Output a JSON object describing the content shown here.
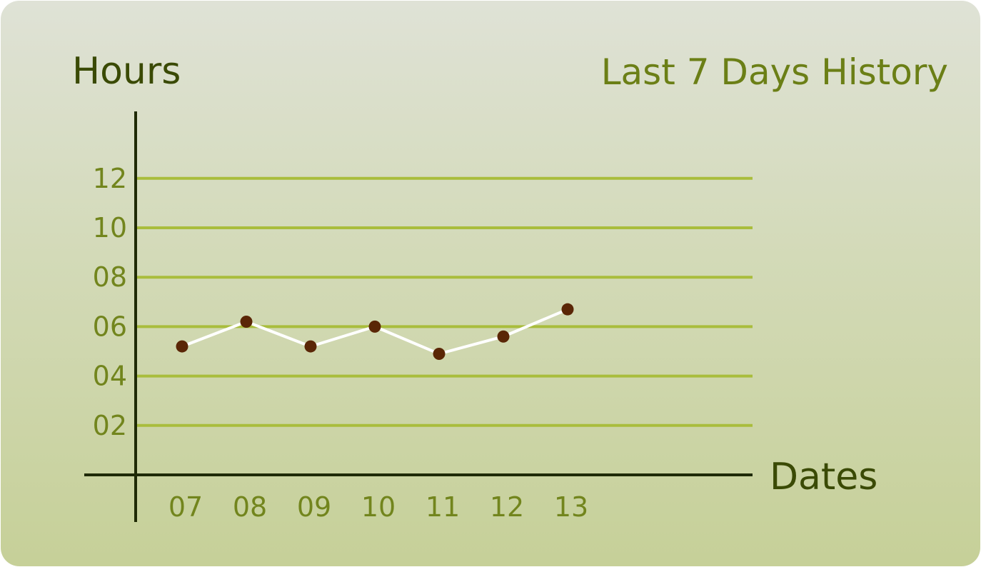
{
  "chart_data": {
    "type": "line",
    "title": "Last 7 Days History",
    "xlabel": "Dates",
    "ylabel": "Hours",
    "categories": [
      "07",
      "08",
      "09",
      "10",
      "11",
      "12",
      "13"
    ],
    "values": [
      5.2,
      6.2,
      5.2,
      6.0,
      4.9,
      5.6,
      6.7
    ],
    "y_ticks": [
      {
        "label": "02",
        "value": 2
      },
      {
        "label": "04",
        "value": 4
      },
      {
        "label": "06",
        "value": 6
      },
      {
        "label": "08",
        "value": 8
      },
      {
        "label": "10",
        "value": 10
      },
      {
        "label": "12",
        "value": 12
      }
    ],
    "ylim": [
      0,
      14
    ],
    "grid": true,
    "legend": "none",
    "colors": {
      "grid": "#a9bd3c",
      "axis": "#1f2a06",
      "line": "#ffffff",
      "marker": "#5a2606",
      "tick": "#72851d",
      "title": "#6b7f16",
      "axis_label": "#3a4a05"
    }
  }
}
